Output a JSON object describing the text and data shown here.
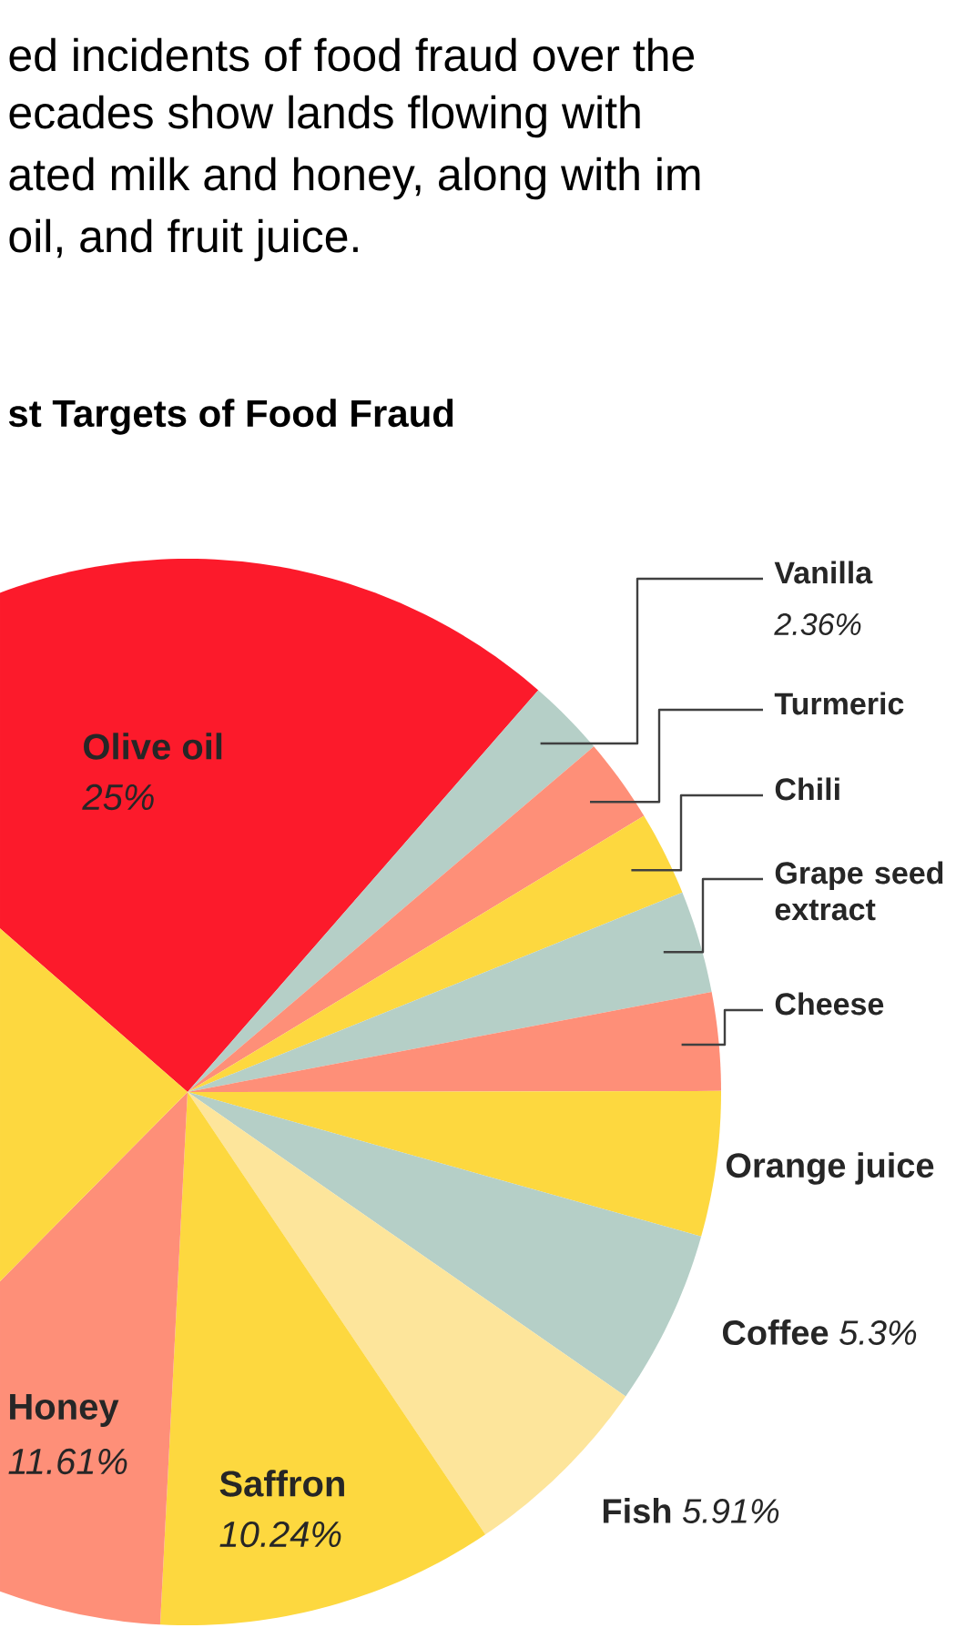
{
  "chart_data": {
    "type": "pie",
    "title": "st Targets of Food Fraud",
    "annotations": [
      "ed incidents of food fraud over the",
      "ecades show lands flowing with",
      "ated milk and honey, along with im",
      "oil, and fruit juice."
    ],
    "categories": [
      "Olive oil",
      "Vanilla",
      "Turmeric",
      "Chili",
      "Grape seed extract",
      "Cheese",
      "Orange juice",
      "Coffee",
      "Fish",
      "Saffron",
      "Honey",
      null
    ],
    "values": [
      25,
      2.36,
      2.56,
      2.56,
      3.1,
      2.97,
      4.4,
      5.3,
      5.91,
      10.24,
      11.61,
      23.99
    ],
    "value_labels": [
      "25%",
      "2.36%",
      null,
      null,
      null,
      null,
      null,
      "5.3%",
      "5.91%",
      "10.24%",
      "11.61%",
      null
    ],
    "colors": [
      "#fc1a2b",
      "#b5cfc7",
      "#fe8f78",
      "#fdd83f",
      "#b5cfc7",
      "#fe8f78",
      "#fdd83f",
      "#b5cfc7",
      "#fde59b",
      "#fdd83f",
      "#fe8f78",
      "#fdd83f"
    ]
  }
}
